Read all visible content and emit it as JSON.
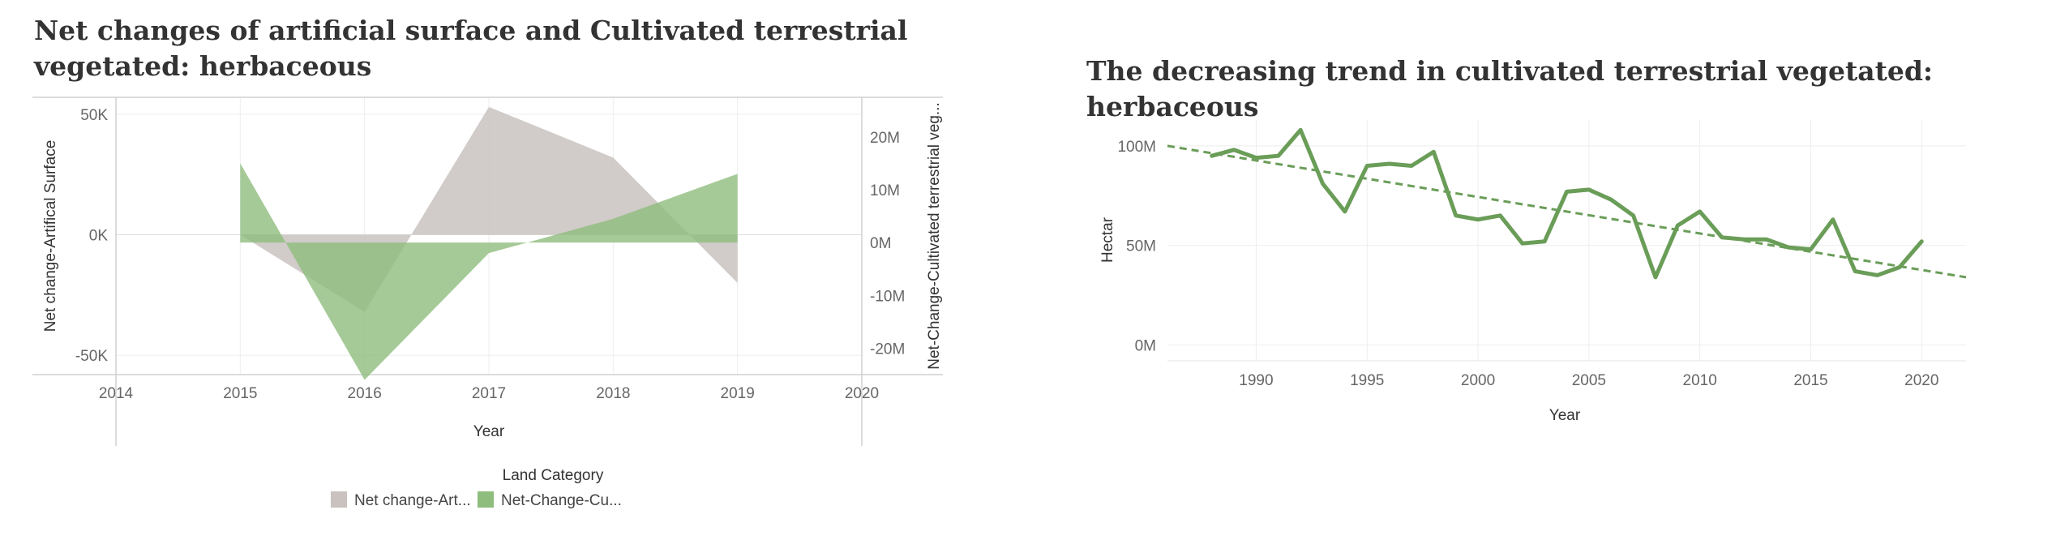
{
  "colors": {
    "artificial": "#c9c2bf",
    "cultivated_area": "#8fbd7d",
    "line": "#6a9d58",
    "grid": "#eeeeee",
    "axis": "#d0d0d0"
  },
  "chart_data": [
    {
      "type": "area",
      "title": "Net changes of artificial surface and Cultivated terrestrial vegetated: herbaceous",
      "xlabel": "Year",
      "ylabel": "Net change-Artifical Surface",
      "y2label": "Net-Change-Cultivated terrestrial veg...",
      "x_ticks": [
        "2014",
        "2015",
        "2016",
        "2017",
        "2018",
        "2019",
        "2020"
      ],
      "xlim": [
        2014,
        2020
      ],
      "y_ticks": [
        "50K",
        "0K",
        "-50K"
      ],
      "y_tick_values": [
        50000,
        0,
        -50000
      ],
      "ylim": [
        -58000,
        57000
      ],
      "y2_ticks": [
        "20M",
        "10M",
        "0M",
        "-10M",
        "-20M"
      ],
      "y2_tick_values": [
        20000000,
        10000000,
        0,
        -10000000,
        -20000000
      ],
      "y2lim": [
        -25000000,
        27500000
      ],
      "legend_title": "Land Category",
      "legend_position": "bottom",
      "series": [
        {
          "name": "Net change-Art...",
          "axis": "left",
          "x": [
            2015,
            2016,
            2017,
            2018,
            2019
          ],
          "values": [
            0,
            -32000,
            53000,
            32000,
            -20000
          ]
        },
        {
          "name": "Net-Change-Cu...",
          "axis": "right",
          "x": [
            2015,
            2016,
            2017,
            2018,
            2019
          ],
          "values": [
            15000000,
            -26000000,
            -2000000,
            4500000,
            13000000
          ]
        }
      ]
    },
    {
      "type": "line",
      "title": "The decreasing trend in cultivated terrestrial vegetated: herbaceous",
      "xlabel": "Year",
      "ylabel": "Hectar",
      "x_ticks": [
        "1990",
        "1995",
        "2000",
        "2005",
        "2010",
        "2015",
        "2020"
      ],
      "x_tick_values": [
        1990,
        1995,
        2000,
        2005,
        2010,
        2015,
        2020
      ],
      "xlim": [
        1986,
        2022
      ],
      "y_ticks": [
        "100M",
        "50M",
        "0M"
      ],
      "y_tick_values": [
        100000000,
        50000000,
        0
      ],
      "ylim": [
        -8000000,
        113000000
      ],
      "trend_line": {
        "x": [
          1986,
          2022
        ],
        "values": [
          100000000,
          34000000
        ]
      },
      "series": [
        {
          "x": [
            1988,
            1989,
            1990,
            1991,
            1992,
            1993,
            1994,
            1995,
            1996,
            1997,
            1998,
            1999,
            2000,
            2001,
            2002,
            2003,
            2004,
            2005,
            2006,
            2007,
            2008,
            2009,
            2010,
            2011,
            2012,
            2013,
            2014,
            2015,
            2016,
            2017,
            2018,
            2019,
            2020
          ],
          "values": [
            95000000,
            98000000,
            94000000,
            95000000,
            108000000,
            81000000,
            67000000,
            90000000,
            91000000,
            90000000,
            97000000,
            65000000,
            63000000,
            65000000,
            51000000,
            52000000,
            77000000,
            78000000,
            73000000,
            65000000,
            34000000,
            60000000,
            67000000,
            54000000,
            53000000,
            53000000,
            49000000,
            48000000,
            63000000,
            37000000,
            35000000,
            39000000,
            52000000
          ]
        }
      ]
    }
  ]
}
